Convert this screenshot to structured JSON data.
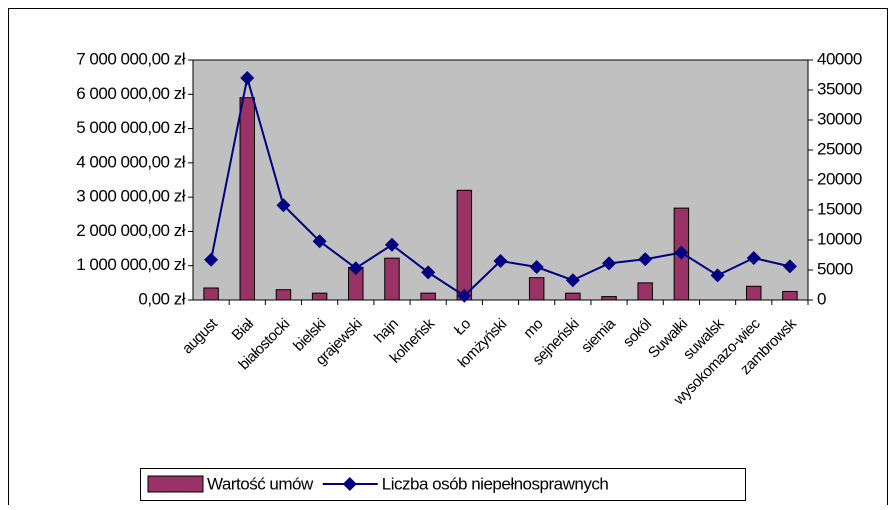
{
  "chart_data": {
    "type": "bar_line",
    "categories": [
      "august",
      "Biał",
      "białostocki",
      "bielski",
      "grajewski",
      "hajn",
      "kolneńsk",
      "Ło",
      "łomżyński",
      "mo",
      "sejneński",
      "siemia",
      "sokól",
      "Suwałki",
      "suwalsk",
      "wysokomazo-wiec",
      "zambrowsk"
    ],
    "series": [
      {
        "name": "Wartość umów",
        "color": "#993366",
        "type": "bar",
        "values": [
          350000,
          5900000,
          300000,
          200000,
          950000,
          1220000,
          200000,
          3200000,
          0,
          650000,
          200000,
          100000,
          500000,
          2680000,
          0,
          400000,
          250000
        ]
      },
      {
        "name": "Liczba osób niepełnosprawnych",
        "color": "#000080",
        "type": "line",
        "axis": "y2",
        "values": [
          6700,
          37000,
          15800,
          9800,
          5300,
          9200,
          4600,
          700,
          6500,
          5500,
          3300,
          6100,
          6800,
          7900,
          4100,
          7000,
          5600
        ]
      }
    ],
    "ylim": [
      0,
      7000000
    ],
    "yticks": [
      {
        "value": 0,
        "label": "0,00 zł"
      },
      {
        "value": 1000000,
        "label": "1 000 000,00 zł"
      },
      {
        "value": 2000000,
        "label": "2 000 000,00 zł"
      },
      {
        "value": 3000000,
        "label": "3 000 000,00 zł"
      },
      {
        "value": 4000000,
        "label": "4 000 000,00 zł"
      },
      {
        "value": 5000000,
        "label": "5 000 000,00 zł"
      },
      {
        "value": 6000000,
        "label": "6 000 000,00 zł"
      },
      {
        "value": 7000000,
        "label": "7 000 000,00 zł"
      }
    ],
    "y2lim": [
      0,
      40000
    ],
    "y2ticks": [
      0,
      5000,
      10000,
      15000,
      20000,
      25000,
      30000,
      35000,
      40000
    ],
    "plot_background": "#c0c0c0",
    "legend": "bottom"
  }
}
